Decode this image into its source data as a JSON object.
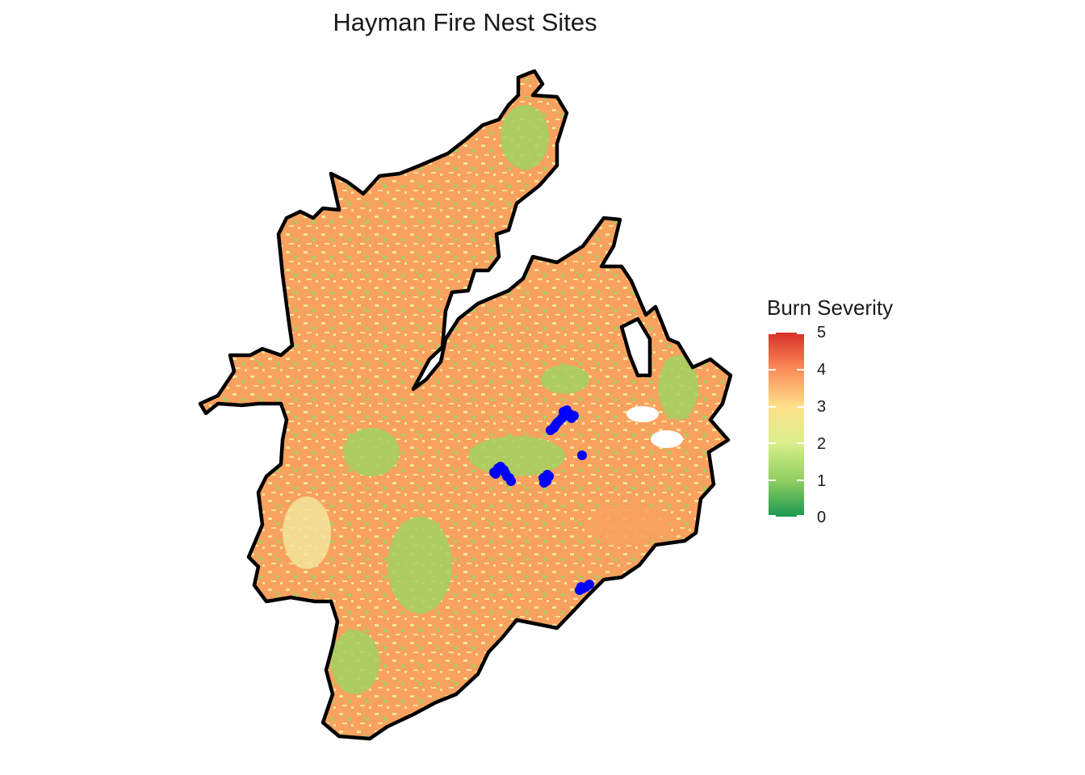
{
  "title": "Hayman Fire Nest Sites",
  "legend": {
    "title": "Burn Severity",
    "ticks": [
      "5",
      "4",
      "3",
      "2",
      "1",
      "0"
    ],
    "colors": [
      "#1a9850",
      "#91cf60",
      "#d9ef8b",
      "#fee08b",
      "#fc8d59",
      "#d73027"
    ]
  },
  "map": {
    "fill_colors": {
      "high": "#f9a15f",
      "moderate": "#f4e59a",
      "low": "#a1d262",
      "unburned": "#ffffff"
    },
    "outline_color": "#000000",
    "nest_color": "#0000ff",
    "nest_site_count": 34
  }
}
